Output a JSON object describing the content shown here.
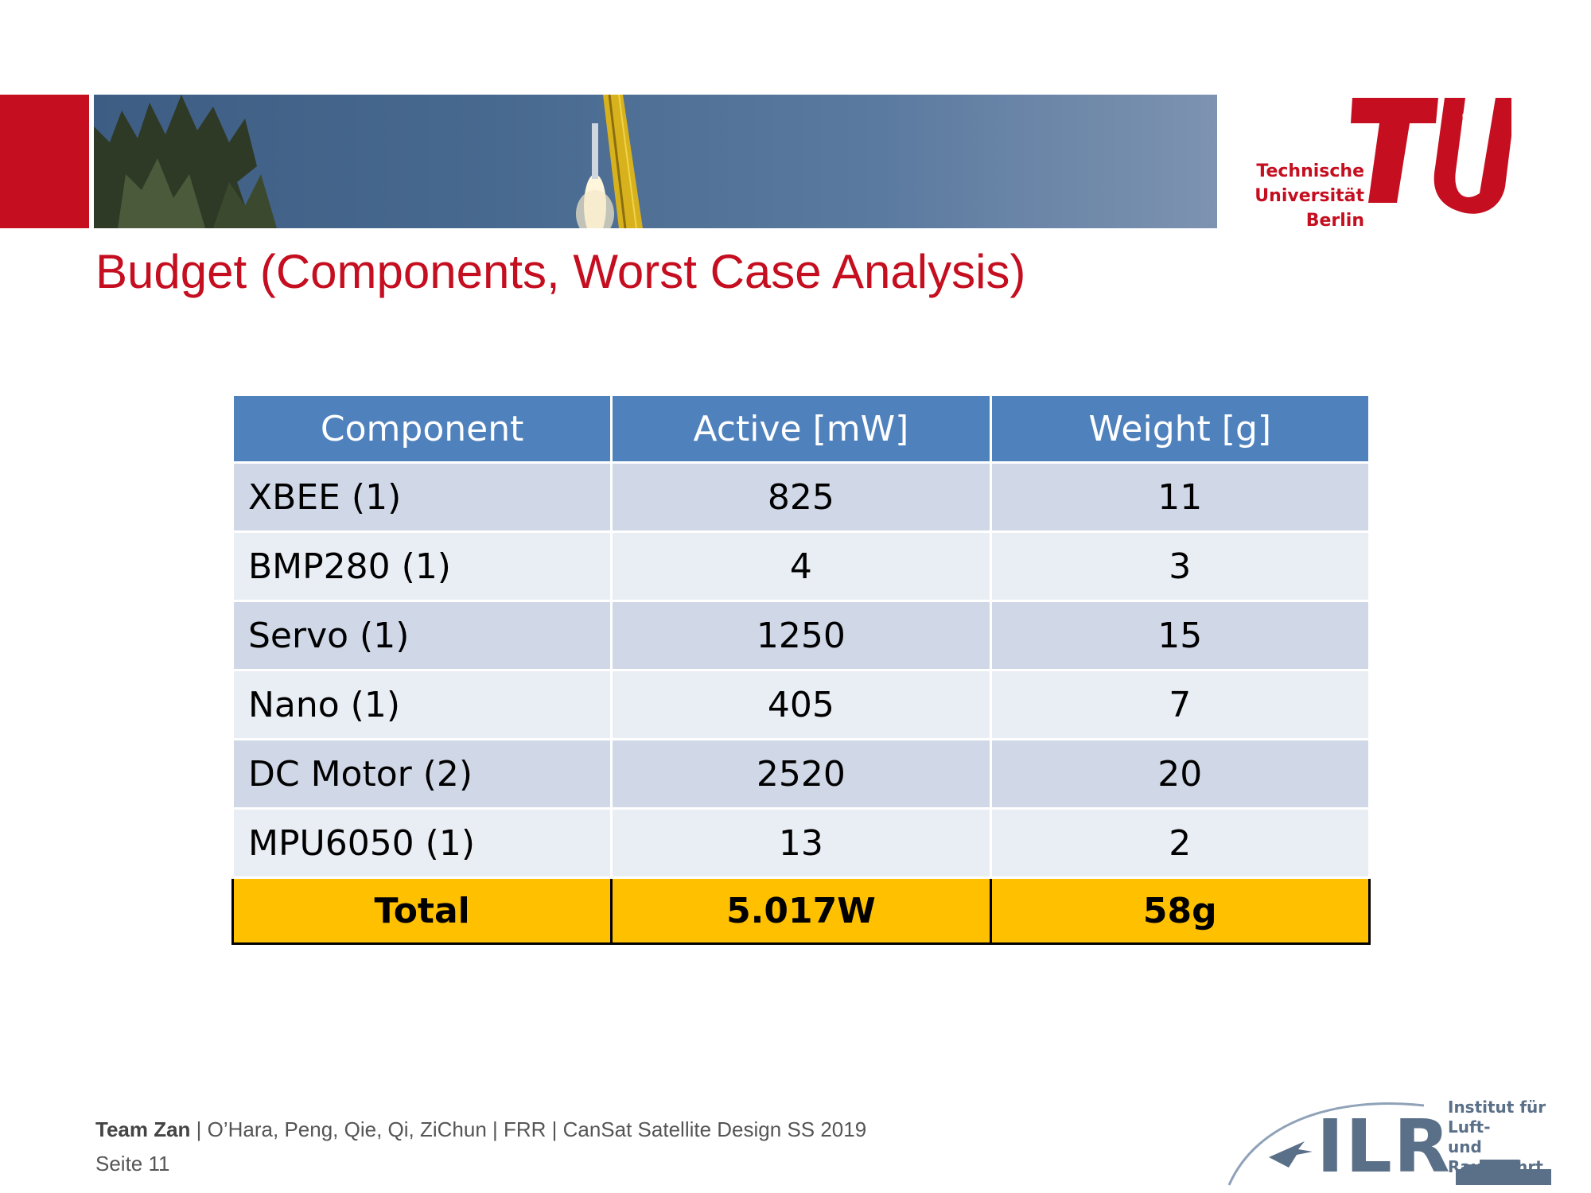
{
  "title": "Budget (Components, Worst Case Analysis)",
  "logo_tu": {
    "lines": [
      "Technische",
      "Universität",
      "Berlin"
    ],
    "vertical": "berlin",
    "color": "#c50e1f"
  },
  "logo_ilr": {
    "letters": "ILR",
    "institute_line1": "Institut für Luft-",
    "institute_line2": "und Raumfahrt"
  },
  "table": {
    "headers": [
      "Component",
      "Active [mW]",
      "Weight [g]"
    ],
    "rows": [
      [
        "XBEE (1)",
        "825",
        "11"
      ],
      [
        "BMP280 (1)",
        "4",
        "3"
      ],
      [
        "Servo (1)",
        "1250",
        "15"
      ],
      [
        "Nano (1)",
        "405",
        "7"
      ],
      [
        "DC Motor (2)",
        "2520",
        "20"
      ],
      [
        "MPU6050 (1)",
        "13",
        "2"
      ]
    ],
    "total": [
      "Total",
      "5.017W",
      "58g"
    ]
  },
  "footer": {
    "team": "Team Zan",
    "details": " | O’Hara, Peng, Qie, Qi, ZiChun | FRR | CanSat Satellite Design SS 2019",
    "page": "Seite 11"
  },
  "colors": {
    "accent_red": "#c50e1f",
    "header_blue": "#4f81bd",
    "row_odd": "#d0d8e8",
    "row_even": "#e9edf4",
    "total_yellow": "#ffc000"
  }
}
